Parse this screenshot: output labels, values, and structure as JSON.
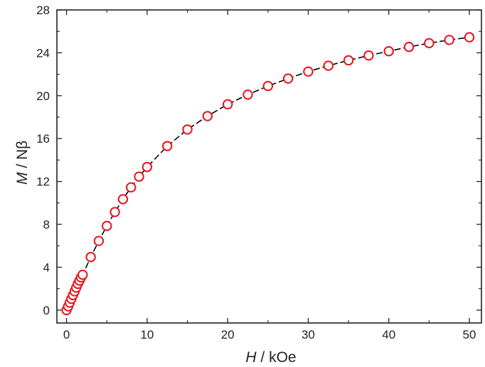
{
  "chart_data": {
    "type": "scatter",
    "xlabel_var": "H",
    "xlabel_unit": " / kOe",
    "ylabel_var": "M",
    "ylabel_unit": " / Nβ",
    "xlim": [
      -1.2,
      51.5
    ],
    "ylim": [
      -1.2,
      28
    ],
    "xticks": [
      0,
      10,
      20,
      30,
      40,
      50
    ],
    "yticks": [
      0,
      4,
      8,
      12,
      16,
      20,
      24,
      28
    ],
    "grid": false,
    "legend": "none",
    "marker_color": "#e8141b",
    "line_color": "#000000",
    "line_style": "dashed",
    "series": [
      {
        "x": [
          0,
          0.2,
          0.4,
          0.6,
          0.8,
          1.0,
          1.2,
          1.4,
          1.6,
          1.8,
          2,
          3,
          4,
          5,
          6,
          7,
          8,
          9,
          10,
          12.5,
          15,
          17.5,
          20,
          22.5,
          25,
          27.5,
          30,
          32.5,
          35,
          37.5,
          40,
          42.5,
          45,
          47.5,
          50
        ],
        "y": [
          0,
          0.35,
          0.7,
          1.05,
          1.4,
          1.75,
          2.1,
          2.45,
          2.75,
          3.05,
          3.3,
          4.95,
          6.45,
          7.85,
          9.15,
          10.35,
          11.45,
          12.45,
          13.35,
          15.3,
          16.85,
          18.1,
          19.2,
          20.1,
          20.9,
          21.6,
          22.25,
          22.8,
          23.3,
          23.75,
          24.15,
          24.55,
          24.9,
          25.2,
          25.45
        ]
      }
    ]
  }
}
